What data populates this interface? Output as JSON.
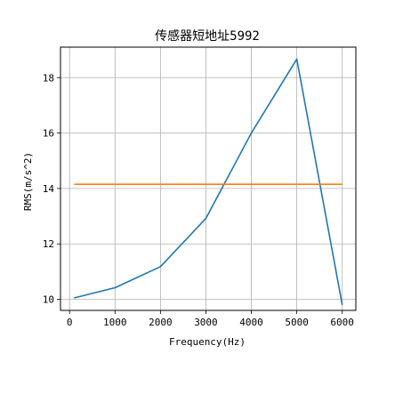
{
  "chart_data": {
    "type": "line",
    "title": "传感器短地址5992",
    "xlabel": "Frequency(Hz)",
    "ylabel": "RMS(m/s^2)",
    "xlim": [
      -200,
      6300
    ],
    "ylim": [
      9.6,
      19.1
    ],
    "xticks": [
      0,
      1000,
      2000,
      3000,
      4000,
      5000,
      6000
    ],
    "yticks": [
      10,
      12,
      14,
      16,
      18
    ],
    "grid": true,
    "series": [
      {
        "color": "#1f77b4",
        "points": [
          [
            100,
            10.05
          ],
          [
            1000,
            10.42
          ],
          [
            2000,
            11.18
          ],
          [
            3000,
            12.92
          ],
          [
            4000,
            16.0
          ],
          [
            5000,
            18.67
          ],
          [
            6000,
            9.8
          ]
        ]
      },
      {
        "color": "#ff7f0e",
        "points": [
          [
            100,
            14.15
          ],
          [
            6000,
            14.15
          ]
        ]
      }
    ]
  }
}
